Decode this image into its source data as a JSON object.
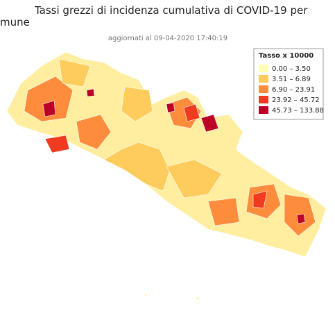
{
  "header": {
    "title_line1": "Tassi grezzi di incidenza cumulativa di COVID-19 per",
    "title_line2": "mune",
    "subtitle": "aggiornati al 09-04-2020 17:40:19"
  },
  "legend": {
    "title": "Tasso x 10000",
    "items": [
      {
        "label": "0.00 – 3.50",
        "color": "#ffffb2"
      },
      {
        "label": "3.51 – 6.89",
        "color": "#fecc5c"
      },
      {
        "label": "6.90 – 23.91",
        "color": "#fd8d3c"
      },
      {
        "label": "23.92 – 45.72",
        "color": "#f03b20"
      },
      {
        "label": "45.73 – 133.88",
        "color": "#bd0026"
      }
    ]
  }
}
